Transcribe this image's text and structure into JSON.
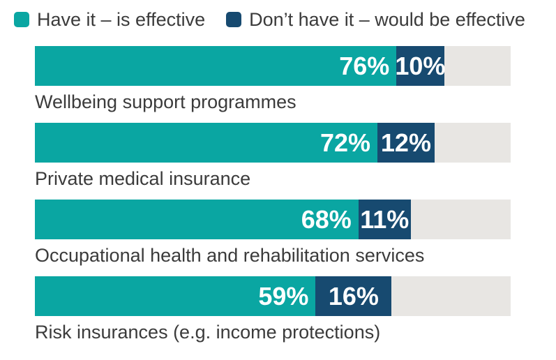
{
  "chart_data": {
    "type": "bar",
    "orientation": "horizontal",
    "stacked": true,
    "value_format": "percent",
    "xlim": [
      0,
      100
    ],
    "grid": false,
    "legend_position": "top",
    "track_color": "#e8e6e3",
    "categories": [
      "Wellbeing support programmes",
      "Private medical insurance",
      "Occupational health and rehabilitation services",
      "Risk insurances (e.g. income protections)"
    ],
    "series": [
      {
        "name": "Have it – is effective",
        "color": "#0aa6a2",
        "values": [
          76,
          72,
          68,
          59
        ],
        "labels": [
          "76%",
          "72%",
          "68%",
          "59%"
        ]
      },
      {
        "name": "Don’t have it – would be effective",
        "color": "#174a70",
        "values": [
          10,
          12,
          11,
          16
        ],
        "labels": [
          "10%",
          "12%",
          "11%",
          "16%"
        ]
      }
    ]
  },
  "legend": {
    "items": [
      {
        "label": "Have it – is effective",
        "color": "#0aa6a2"
      },
      {
        "label": "Don’t have it – would be effective",
        "color": "#174a70"
      }
    ]
  },
  "colors": {
    "label_text": "#3b3b3b",
    "value_text": "#ffffff",
    "background": "#ffffff"
  }
}
